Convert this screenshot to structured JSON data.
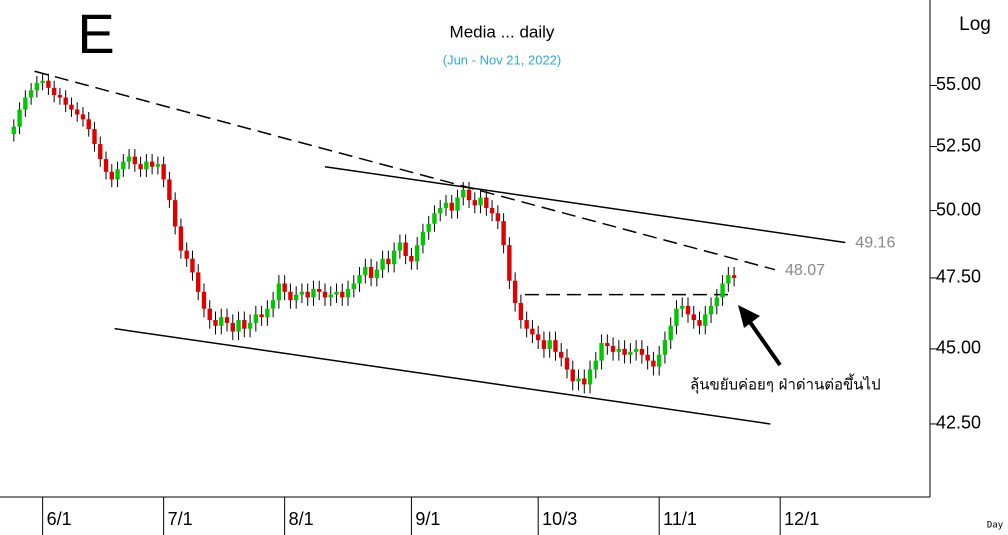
{
  "chart_data": {
    "type": "candlestick",
    "title": "Media ... daily",
    "subtitle": "(Jun - Nov 21, 2022)",
    "corner_label": "E",
    "scale_label": "Log",
    "x_unit_label": "Day",
    "log_scale": true,
    "up_color": "#00c800",
    "down_color": "#e00000",
    "open": [
      53.0,
      53.3,
      54.0,
      54.5,
      54.8,
      55.1,
      55.2,
      54.9,
      54.6,
      54.5,
      54.2,
      54.0,
      53.8,
      53.6,
      53.2,
      52.6,
      52.0,
      51.5,
      51.2,
      51.6,
      51.9,
      52.1,
      51.8,
      51.6,
      51.9,
      51.7,
      51.8,
      51.2,
      50.4,
      49.4,
      48.5,
      48.2,
      47.7,
      47.0,
      46.4,
      46.0,
      45.8,
      46.1,
      45.9,
      45.6,
      46.0,
      45.7,
      45.9,
      46.2,
      46.1,
      46.4,
      46.7,
      47.3,
      47.0,
      46.7,
      46.9,
      47.0,
      46.8,
      47.1,
      47.0,
      46.8,
      46.9,
      47.0,
      46.8,
      47.1,
      47.3,
      47.6,
      47.9,
      47.5,
      47.8,
      48.2,
      48.0,
      48.5,
      48.8,
      48.3,
      48.1,
      48.7,
      49.2,
      49.5,
      49.9,
      50.1,
      50.3,
      50.0,
      50.5,
      50.8,
      50.4,
      50.2,
      50.5,
      50.1,
      49.9,
      49.6,
      48.7,
      47.4,
      46.6,
      46.0,
      45.7,
      45.5,
      45.3,
      45.0,
      45.3,
      44.9,
      44.7,
      44.3,
      43.9,
      44.0,
      43.8,
      44.3,
      44.6,
      45.2,
      45.1,
      44.9,
      45.0,
      44.8,
      44.9,
      45.0,
      44.8,
      44.6,
      44.4,
      44.8,
      45.3,
      45.8,
      46.4,
      46.5,
      46.2,
      46.0,
      45.8,
      46.2,
      46.5,
      46.8,
      47.3,
      47.6
    ],
    "high": [
      53.6,
      54.3,
      54.8,
      55.1,
      55.4,
      55.5,
      55.5,
      55.2,
      54.9,
      54.8,
      54.5,
      54.3,
      54.1,
      53.9,
      53.5,
      52.9,
      52.3,
      51.8,
      51.9,
      52.2,
      52.4,
      52.4,
      52.1,
      52.2,
      52.2,
      52.1,
      52.1,
      51.5,
      50.7,
      49.7,
      48.8,
      48.5,
      48.0,
      47.3,
      46.7,
      46.3,
      46.4,
      46.4,
      46.2,
      46.3,
      46.3,
      46.2,
      46.5,
      46.5,
      46.7,
      47.0,
      47.6,
      47.6,
      47.3,
      47.2,
      47.3,
      47.3,
      47.4,
      47.4,
      47.3,
      47.2,
      47.3,
      47.3,
      47.4,
      47.6,
      47.9,
      48.2,
      48.2,
      48.1,
      48.5,
      48.5,
      48.8,
      49.1,
      49.1,
      48.6,
      49.0,
      49.5,
      49.8,
      50.2,
      50.4,
      50.6,
      50.6,
      50.8,
      51.1,
      51.1,
      50.7,
      50.8,
      50.8,
      50.4,
      50.2,
      49.9,
      49.0,
      47.7,
      46.9,
      46.3,
      46.0,
      45.8,
      45.6,
      45.6,
      45.6,
      45.2,
      45.0,
      44.6,
      44.3,
      44.3,
      44.6,
      44.9,
      45.5,
      45.5,
      45.4,
      45.3,
      45.3,
      45.2,
      45.3,
      45.3,
      45.1,
      44.9,
      45.1,
      45.6,
      46.1,
      46.7,
      46.8,
      46.8,
      46.5,
      46.3,
      46.5,
      46.8,
      47.1,
      47.6,
      47.9,
      47.9
    ],
    "low": [
      52.7,
      53.0,
      53.7,
      54.2,
      54.5,
      54.8,
      54.6,
      54.3,
      54.2,
      53.9,
      53.7,
      53.5,
      53.3,
      52.9,
      52.3,
      51.7,
      51.2,
      50.9,
      50.9,
      51.3,
      51.6,
      51.5,
      51.3,
      51.3,
      51.4,
      51.4,
      50.9,
      50.1,
      49.1,
      48.2,
      47.9,
      47.4,
      46.7,
      46.1,
      45.7,
      45.5,
      45.5,
      45.6,
      45.3,
      45.3,
      45.4,
      45.4,
      45.6,
      45.8,
      45.8,
      46.1,
      46.4,
      46.7,
      46.4,
      46.4,
      46.6,
      46.5,
      46.5,
      46.7,
      46.5,
      46.5,
      46.6,
      46.5,
      46.5,
      46.8,
      47.0,
      47.3,
      47.2,
      47.2,
      47.5,
      47.7,
      47.7,
      48.2,
      48.0,
      47.8,
      47.8,
      48.4,
      48.9,
      49.2,
      49.6,
      49.8,
      49.7,
      49.7,
      50.2,
      50.1,
      49.9,
      49.9,
      49.8,
      49.6,
      49.3,
      48.4,
      47.1,
      46.3,
      45.7,
      45.4,
      45.2,
      45.0,
      44.7,
      44.7,
      44.6,
      44.4,
      44.0,
      43.6,
      43.6,
      43.5,
      43.5,
      44.0,
      44.3,
      44.8,
      44.6,
      44.6,
      44.5,
      44.5,
      44.6,
      44.5,
      44.3,
      44.1,
      44.1,
      44.5,
      45.0,
      45.5,
      46.1,
      45.9,
      45.7,
      45.5,
      45.5,
      45.9,
      46.2,
      46.5,
      47.0,
      47.2
    ],
    "close": [
      53.3,
      54.0,
      54.5,
      54.8,
      55.1,
      55.2,
      54.9,
      54.6,
      54.5,
      54.2,
      54.0,
      53.8,
      53.6,
      53.2,
      52.6,
      52.0,
      51.5,
      51.2,
      51.6,
      51.9,
      52.1,
      51.8,
      51.6,
      51.9,
      51.7,
      51.8,
      51.2,
      50.4,
      49.4,
      48.5,
      48.2,
      47.7,
      47.0,
      46.4,
      46.0,
      45.8,
      46.1,
      45.9,
      45.6,
      46.0,
      45.7,
      45.9,
      46.2,
      46.1,
      46.4,
      46.7,
      47.3,
      47.0,
      46.7,
      46.9,
      47.0,
      46.8,
      47.1,
      47.0,
      46.8,
      46.9,
      47.0,
      46.8,
      47.1,
      47.3,
      47.6,
      47.9,
      47.5,
      47.8,
      48.2,
      48.0,
      48.5,
      48.8,
      48.3,
      48.1,
      48.7,
      49.2,
      49.5,
      49.9,
      50.1,
      50.3,
      50.0,
      50.5,
      50.8,
      50.4,
      50.2,
      50.5,
      50.1,
      49.9,
      49.6,
      48.7,
      47.4,
      46.6,
      46.0,
      45.7,
      45.5,
      45.3,
      45.0,
      45.3,
      44.9,
      44.7,
      44.3,
      43.9,
      44.0,
      43.8,
      44.3,
      44.6,
      45.2,
      45.1,
      44.9,
      45.0,
      44.8,
      44.9,
      45.0,
      44.8,
      44.6,
      44.4,
      44.8,
      45.3,
      45.8,
      46.4,
      46.5,
      46.2,
      46.0,
      45.8,
      46.2,
      46.5,
      46.8,
      47.3,
      47.6,
      47.5
    ],
    "xlim": [
      -2.4,
      159
    ],
    "xticks": [
      {
        "value": 5,
        "label": "6/1"
      },
      {
        "value": 26,
        "label": "7/1"
      },
      {
        "value": 47,
        "label": "8/1"
      },
      {
        "value": 69,
        "label": "9/1"
      },
      {
        "value": 91,
        "label": "10/3"
      },
      {
        "value": 112,
        "label": "11/1"
      },
      {
        "value": 133,
        "label": "12/1"
      }
    ],
    "ylim": [
      40.2,
      58.7
    ],
    "yticks": [
      {
        "value": 42.5,
        "label": "42.50"
      },
      {
        "value": 45,
        "label": "45.00"
      },
      {
        "value": 47.5,
        "label": "47.50"
      },
      {
        "value": 50,
        "label": "50.00"
      },
      {
        "value": 52.5,
        "label": "52.50"
      },
      {
        "value": 55,
        "label": "55.00"
      }
    ],
    "trendlines": [
      {
        "x": [
          3.6,
          132.1
        ],
        "values": [
          55.6,
          47.8
        ],
        "style": "dashed",
        "label": "48.07"
      },
      {
        "x": [
          54,
          144.3
        ],
        "values": [
          51.7,
          48.8
        ],
        "style": "solid",
        "label": "49.16"
      },
      {
        "x": [
          17.5,
          131.3
        ],
        "values": [
          45.7,
          42.5
        ],
        "style": "solid"
      },
      {
        "x": [
          88.7,
          125
        ],
        "values": [
          46.9,
          46.9
        ],
        "style": "dashed"
      }
    ],
    "annotation": "ลุ้นขยับค่อยๆ ฝ่าด่านต่อขึ้นไป"
  }
}
